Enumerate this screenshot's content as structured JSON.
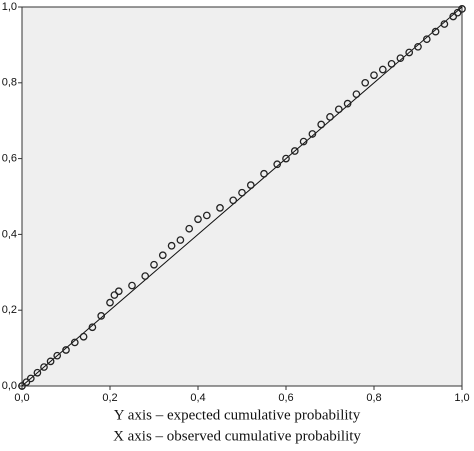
{
  "chart_data": {
    "type": "scatter",
    "x": [
      0.0,
      0.01,
      0.02,
      0.035,
      0.05,
      0.065,
      0.08,
      0.1,
      0.12,
      0.14,
      0.16,
      0.18,
      0.2,
      0.21,
      0.22,
      0.25,
      0.28,
      0.3,
      0.32,
      0.34,
      0.36,
      0.38,
      0.4,
      0.42,
      0.45,
      0.48,
      0.5,
      0.52,
      0.55,
      0.58,
      0.6,
      0.62,
      0.64,
      0.66,
      0.68,
      0.7,
      0.72,
      0.74,
      0.76,
      0.78,
      0.8,
      0.82,
      0.84,
      0.86,
      0.88,
      0.9,
      0.92,
      0.94,
      0.96,
      0.98,
      0.99,
      1.0
    ],
    "y": [
      0.0,
      0.01,
      0.02,
      0.035,
      0.05,
      0.065,
      0.08,
      0.095,
      0.115,
      0.13,
      0.155,
      0.185,
      0.22,
      0.24,
      0.25,
      0.265,
      0.29,
      0.32,
      0.345,
      0.37,
      0.385,
      0.415,
      0.44,
      0.45,
      0.47,
      0.49,
      0.51,
      0.53,
      0.56,
      0.585,
      0.6,
      0.62,
      0.645,
      0.665,
      0.69,
      0.71,
      0.73,
      0.745,
      0.77,
      0.8,
      0.82,
      0.835,
      0.85,
      0.865,
      0.88,
      0.895,
      0.915,
      0.935,
      0.955,
      0.975,
      0.985,
      0.995
    ],
    "color": "#222222",
    "xlim": [
      0,
      1
    ],
    "ylim": [
      0,
      1
    ],
    "xticks": [
      {
        "value": 0,
        "label": "0,0"
      },
      {
        "value": 0.2,
        "label": "0,2"
      },
      {
        "value": 0.4,
        "label": "0,4"
      },
      {
        "value": 0.6,
        "label": "0,6"
      },
      {
        "value": 0.8,
        "label": "0,8"
      },
      {
        "value": 1,
        "label": "1,0"
      }
    ],
    "yticks": [
      {
        "value": 0,
        "label": "0,0"
      },
      {
        "value": 0.2,
        "label": "0,2"
      },
      {
        "value": 0.4,
        "label": "0,4"
      },
      {
        "value": 0.6,
        "label": "0,6"
      },
      {
        "value": 0.8,
        "label": "0,8"
      },
      {
        "value": 1,
        "label": "1,0"
      }
    ],
    "reference_line": true,
    "annotations": [
      "Y axis – expected cumulative probability",
      "X axis – observed cumulative probability"
    ]
  }
}
